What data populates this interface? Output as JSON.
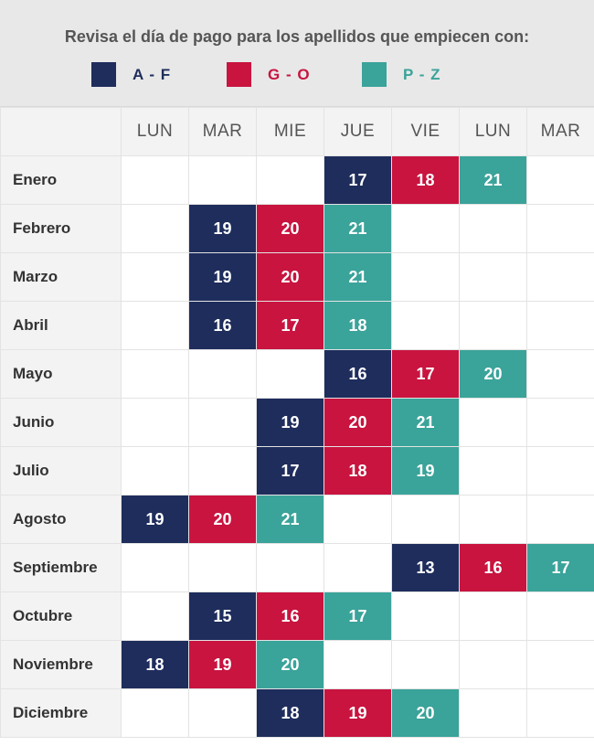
{
  "header": {
    "title": "Revisa el día de pago para los apellidos que empiecen con:",
    "legend": [
      {
        "label": "A - F",
        "color": "#1e2d5c"
      },
      {
        "label": "G - O",
        "color": "#c8143f"
      },
      {
        "label": "P - Z",
        "color": "#3aa39a"
      }
    ]
  },
  "table": {
    "days": [
      "LUN",
      "MAR",
      "MIE",
      "JUE",
      "VIE",
      "LUN",
      "MAR"
    ],
    "groupColors": {
      "af": "#1e2d5c",
      "go": "#c8143f",
      "pz": "#3aa39a"
    },
    "rows": [
      {
        "month": "Enero",
        "cells": [
          "",
          "",
          "",
          "17",
          "18",
          "21",
          ""
        ],
        "groups": [
          "",
          "",
          "",
          "af",
          "go",
          "pz",
          ""
        ]
      },
      {
        "month": "Febrero",
        "cells": [
          "",
          "19",
          "20",
          "21",
          "",
          "",
          ""
        ],
        "groups": [
          "",
          "af",
          "go",
          "pz",
          "",
          "",
          ""
        ]
      },
      {
        "month": "Marzo",
        "cells": [
          "",
          "19",
          "20",
          "21",
          "",
          "",
          ""
        ],
        "groups": [
          "",
          "af",
          "go",
          "pz",
          "",
          "",
          ""
        ]
      },
      {
        "month": "Abril",
        "cells": [
          "",
          "16",
          "17",
          "18",
          "",
          "",
          ""
        ],
        "groups": [
          "",
          "af",
          "go",
          "pz",
          "",
          "",
          ""
        ]
      },
      {
        "month": "Mayo",
        "cells": [
          "",
          "",
          "",
          "16",
          "17",
          "20",
          ""
        ],
        "groups": [
          "",
          "",
          "",
          "af",
          "go",
          "pz",
          ""
        ]
      },
      {
        "month": "Junio",
        "cells": [
          "",
          "",
          "19",
          "20",
          "21",
          "",
          ""
        ],
        "groups": [
          "",
          "",
          "af",
          "go",
          "pz",
          "",
          ""
        ]
      },
      {
        "month": "Julio",
        "cells": [
          "",
          "",
          "17",
          "18",
          "19",
          "",
          ""
        ],
        "groups": [
          "",
          "",
          "af",
          "go",
          "pz",
          "",
          ""
        ]
      },
      {
        "month": "Agosto",
        "cells": [
          "19",
          "20",
          "21",
          "",
          "",
          "",
          ""
        ],
        "groups": [
          "af",
          "go",
          "pz",
          "",
          "",
          "",
          ""
        ]
      },
      {
        "month": "Septiembre",
        "cells": [
          "",
          "",
          "",
          "",
          "13",
          "16",
          "17"
        ],
        "groups": [
          "",
          "",
          "",
          "",
          "af",
          "go",
          "pz"
        ]
      },
      {
        "month": "Octubre",
        "cells": [
          "",
          "15",
          "16",
          "17",
          "",
          "",
          ""
        ],
        "groups": [
          "",
          "af",
          "go",
          "pz",
          "",
          "",
          ""
        ]
      },
      {
        "month": "Noviembre",
        "cells": [
          "18",
          "19",
          "20",
          "",
          "",
          "",
          ""
        ],
        "groups": [
          "af",
          "go",
          "pz",
          "",
          "",
          "",
          ""
        ]
      },
      {
        "month": "Diciembre",
        "cells": [
          "",
          "",
          "18",
          "19",
          "20",
          "",
          ""
        ],
        "groups": [
          "",
          "",
          "af",
          "go",
          "pz",
          "",
          ""
        ]
      }
    ]
  }
}
